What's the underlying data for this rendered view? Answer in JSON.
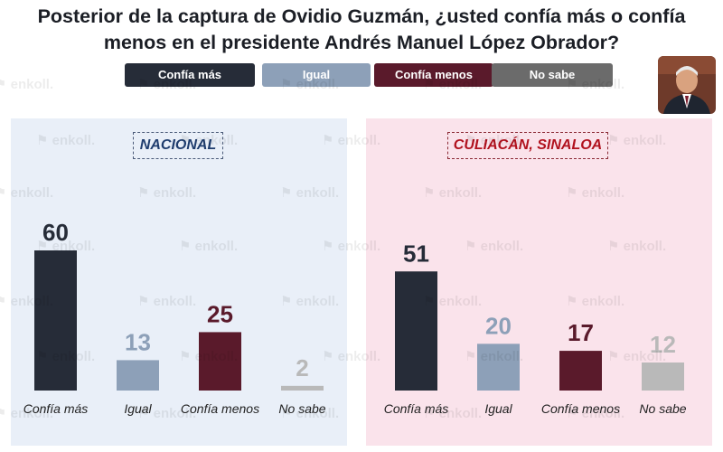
{
  "title_line1": "Posterior de la captura de Ovidio Guzmán, ¿usted confía más o confía",
  "title_line2": "menos en el presidente Andrés Manuel López Obrador?",
  "legend": [
    {
      "label": "Confía más",
      "color": "#262c38"
    },
    {
      "label": "Igual",
      "color": "#8da0b8"
    },
    {
      "label": "Confía menos",
      "color": "#5a1a2b"
    },
    {
      "label": "No sabe",
      "color": "#6b6b6b"
    }
  ],
  "watermark_text": "enkoll.",
  "photo_icon": "president-portrait",
  "chart_data": [
    {
      "type": "bar",
      "panel_title": "NACIONAL",
      "categories": [
        "Confía más",
        "Igual",
        "Confía menos",
        "No sabe"
      ],
      "values": [
        60,
        13,
        25,
        2
      ],
      "colors": [
        "#262c38",
        "#8da0b8",
        "#5a1a2b",
        "#b9b9b9"
      ],
      "label_colors": [
        "#262c38",
        "#8da0b8",
        "#5a1a2b",
        "#b9b9b9"
      ],
      "ylim": [
        0,
        60
      ],
      "grid": false
    },
    {
      "type": "bar",
      "panel_title": "CULIACÁN, SINALOA",
      "categories": [
        "Confía más",
        "Igual",
        "Confía menos",
        "No sabe"
      ],
      "values": [
        51,
        20,
        17,
        12
      ],
      "colors": [
        "#262c38",
        "#8da0b8",
        "#5a1a2b",
        "#b9b9b9"
      ],
      "label_colors": [
        "#262c38",
        "#8da0b8",
        "#5a1a2b",
        "#b9b9b9"
      ],
      "ylim": [
        0,
        60
      ],
      "grid": false
    }
  ]
}
